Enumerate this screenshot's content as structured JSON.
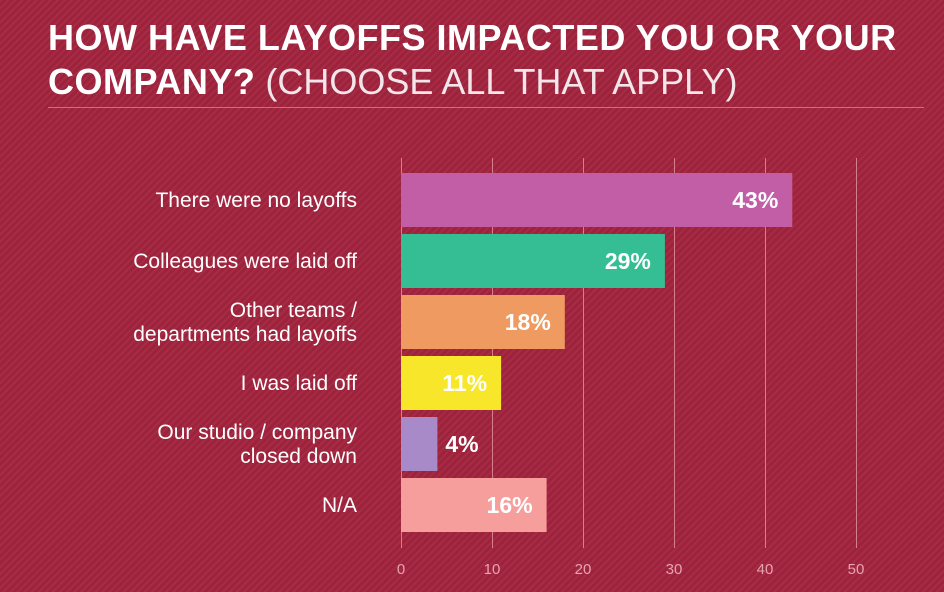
{
  "title": {
    "bold": "HOW HAVE LAYOFFS IMPACTED YOU OR YOUR COMPANY?",
    "light": "(CHOOSE ALL THAT APPLY)"
  },
  "chart_data": {
    "type": "bar",
    "orientation": "horizontal",
    "title": "HOW HAVE LAYOFFS IMPACTED YOU OR YOUR COMPANY? (CHOOSE ALL THAT APPLY)",
    "categories": [
      [
        "There were no layoffs"
      ],
      [
        "Colleagues were laid off"
      ],
      [
        "Other teams /",
        "departments had layoffs"
      ],
      [
        "I was laid off"
      ],
      [
        "Our studio / company",
        "closed down"
      ],
      [
        "N/A"
      ]
    ],
    "values": [
      43,
      29,
      18,
      11,
      4,
      16
    ],
    "value_labels": [
      "43%",
      "29%",
      "18%",
      "11%",
      "4%",
      "16%"
    ],
    "colors": [
      "#c25ea6",
      "#35bd93",
      "#ef9a60",
      "#f7e629",
      "#a88ac8",
      "#f59e9c"
    ],
    "xlim": [
      0,
      50
    ],
    "xticks": [
      0,
      10,
      20,
      30,
      40,
      50
    ],
    "xlabel": "",
    "ylabel": "",
    "grid": true
  }
}
